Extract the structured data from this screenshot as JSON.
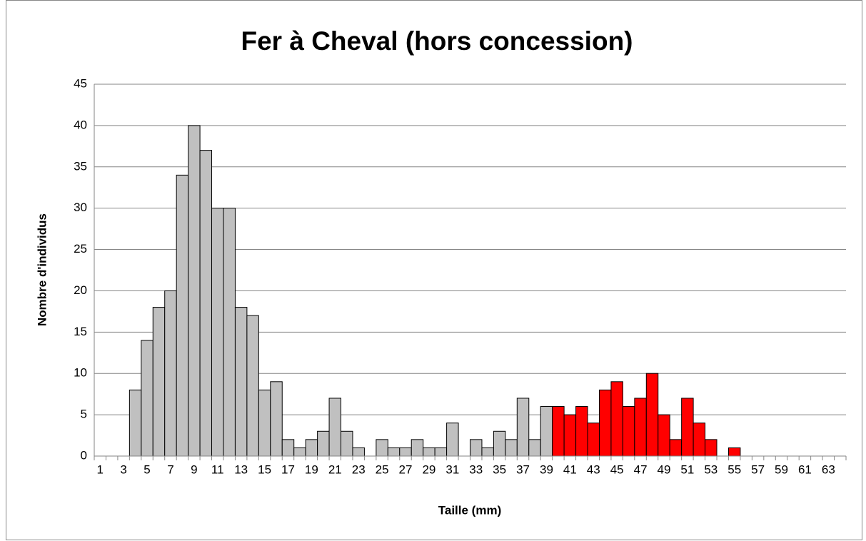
{
  "chart_data": {
    "type": "bar",
    "title": "Fer à Cheval (hors concession)",
    "xlabel": "Taille (mm)",
    "ylabel": "Nombre d'individus",
    "categories": [
      1,
      null,
      3,
      null,
      5,
      null,
      7,
      null,
      9,
      null,
      11,
      null,
      13,
      null,
      15,
      null,
      17,
      null,
      19,
      null,
      21,
      null,
      23,
      null,
      25,
      null,
      27,
      null,
      29,
      null,
      31,
      null,
      33,
      null,
      35,
      null,
      37,
      null,
      39,
      null,
      41,
      null,
      43,
      null,
      45,
      null,
      47,
      null,
      49,
      null,
      51,
      null,
      53,
      null,
      55,
      null,
      57,
      null,
      59,
      null,
      61,
      null,
      63,
      null
    ],
    "values": [
      0,
      0,
      0,
      8,
      14,
      18,
      20,
      34,
      40,
      37,
      30,
      30,
      18,
      17,
      8,
      9,
      2,
      1,
      2,
      3,
      7,
      3,
      1,
      0,
      2,
      1,
      1,
      2,
      1,
      1,
      4,
      0,
      2,
      1,
      3,
      2,
      7,
      2,
      6,
      6,
      5,
      6,
      4,
      8,
      9,
      6,
      7,
      10,
      5,
      2,
      7,
      4,
      2,
      0,
      1,
      0,
      0,
      0,
      0,
      0,
      0,
      0,
      0,
      0
    ],
    "colors": [
      "#c0c0c0",
      "#c0c0c0",
      "#c0c0c0",
      "#c0c0c0",
      "#c0c0c0",
      "#c0c0c0",
      "#c0c0c0",
      "#c0c0c0",
      "#c0c0c0",
      "#c0c0c0",
      "#c0c0c0",
      "#c0c0c0",
      "#c0c0c0",
      "#c0c0c0",
      "#c0c0c0",
      "#c0c0c0",
      "#c0c0c0",
      "#c0c0c0",
      "#c0c0c0",
      "#c0c0c0",
      "#c0c0c0",
      "#c0c0c0",
      "#c0c0c0",
      "#c0c0c0",
      "#c0c0c0",
      "#c0c0c0",
      "#c0c0c0",
      "#c0c0c0",
      "#c0c0c0",
      "#c0c0c0",
      "#c0c0c0",
      "#c0c0c0",
      "#c0c0c0",
      "#c0c0c0",
      "#c0c0c0",
      "#c0c0c0",
      "#c0c0c0",
      "#c0c0c0",
      "#c0c0c0",
      "#ff0000",
      "#ff0000",
      "#ff0000",
      "#ff0000",
      "#ff0000",
      "#ff0000",
      "#ff0000",
      "#ff0000",
      "#ff0000",
      "#ff0000",
      "#ff0000",
      "#ff0000",
      "#ff0000",
      "#ff0000",
      "#ff0000",
      "#ff0000",
      "#ff0000",
      "#ff0000",
      "#ff0000",
      "#ff0000",
      "#ff0000",
      "#ff0000",
      "#ff0000",
      "#ff0000",
      "#ff0000"
    ],
    "ylim": [
      0,
      45
    ],
    "yticks": [
      0,
      5,
      10,
      15,
      20,
      25,
      30,
      35,
      40,
      45
    ],
    "grid": true
  }
}
